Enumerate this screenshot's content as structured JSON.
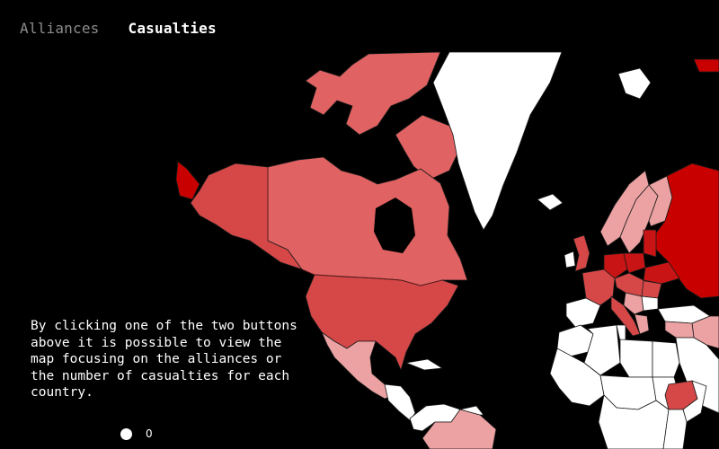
{
  "tabs": {
    "alliances": "Alliances",
    "casualties": "Casualties",
    "active": "casualties"
  },
  "info_text": "By clicking one of the two buttons above it is possible to view the map focusing on the alliances or the number of casualties for each country.",
  "legend": {
    "label": "0"
  },
  "map": {
    "colors": {
      "none": "#ffffff",
      "low": "#eca2a2",
      "medium": "#e06262",
      "high": "#d64848",
      "very_high": "#c81414",
      "extreme": "#c80000",
      "background": "#000000"
    }
  }
}
